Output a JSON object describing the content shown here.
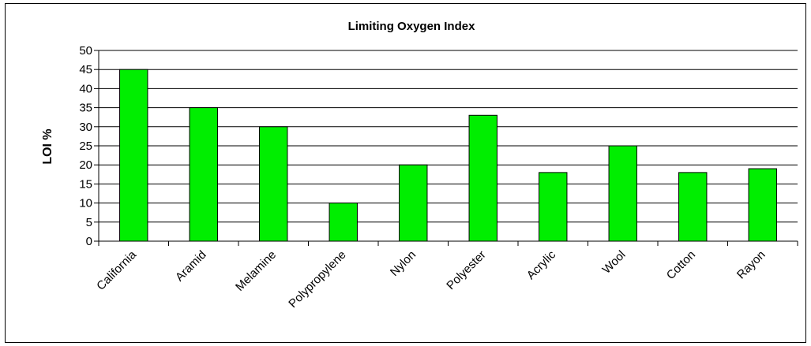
{
  "chart_data": {
    "type": "bar",
    "title": "Limiting Oxygen Index",
    "xlabel": "",
    "ylabel": "LOI %",
    "ylim": [
      0,
      50
    ],
    "yticks": [
      0,
      5,
      10,
      15,
      20,
      25,
      30,
      35,
      40,
      45,
      50
    ],
    "grid": true,
    "legend": "none",
    "bar_color": "#00ee00",
    "categories": [
      "California",
      "Aramid",
      "Melamine",
      "Polypropylene",
      "Nylon",
      "Polyester",
      "Acrylic",
      "Wool",
      "Cotton",
      "Rayon"
    ],
    "values": [
      45,
      35,
      30,
      10,
      20,
      33,
      18,
      25,
      18,
      19
    ]
  }
}
